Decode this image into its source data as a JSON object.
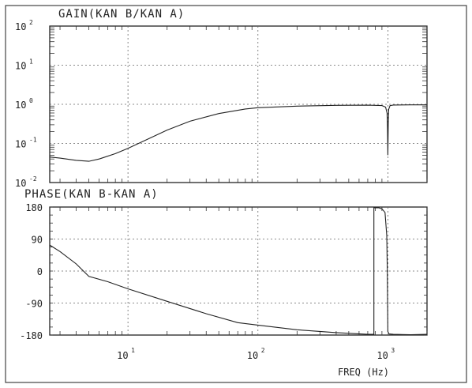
{
  "chart_data": [
    {
      "type": "line",
      "title": "GAIN(KAN B/KAN A)",
      "xscale": "log",
      "yscale": "log",
      "xlim": [
        2.5,
        2000
      ],
      "ylim": [
        0.01,
        100
      ],
      "grid": true,
      "y_ticks": [
        {
          "base": "10",
          "exp": "2"
        },
        {
          "base": "10",
          "exp": "1"
        },
        {
          "base": "10",
          "exp": "0"
        },
        {
          "base": "10",
          "exp": "-1"
        },
        {
          "base": "10",
          "exp": "-2"
        }
      ],
      "series": [
        {
          "x": [
            2.5,
            3,
            4,
            5,
            6,
            8,
            10,
            15,
            20,
            30,
            50,
            80,
            100,
            200,
            400,
            700,
            900,
            960,
            985,
            993,
            1000,
            1007,
            1015,
            1040,
            1100,
            1500,
            2000
          ],
          "y": [
            0.045,
            0.042,
            0.037,
            0.035,
            0.04,
            0.055,
            0.075,
            0.14,
            0.22,
            0.37,
            0.58,
            0.76,
            0.82,
            0.9,
            0.94,
            0.95,
            0.93,
            0.85,
            0.6,
            0.25,
            0.05,
            0.3,
            0.75,
            0.93,
            0.96,
            0.97,
            0.97
          ]
        }
      ]
    },
    {
      "type": "line",
      "title": "PHASE(KAN B-KAN A)",
      "xscale": "log",
      "xlim": [
        2.5,
        2000
      ],
      "ylim": [
        -180,
        180
      ],
      "grid": true,
      "xlabel": "FREQ (Hz)",
      "y_ticks": [
        "180",
        "90",
        "0",
        "-90",
        "-180"
      ],
      "x_ticks": [
        {
          "base": "10",
          "exp": "1"
        },
        {
          "base": "10",
          "exp": "2"
        },
        {
          "base": "10",
          "exp": "3"
        }
      ],
      "series": [
        {
          "x": [
            2.5,
            3,
            4,
            5,
            7,
            10,
            20,
            40,
            70,
            100,
            200,
            400,
            700,
            750,
            770,
            780,
            780.5,
            790,
            850,
            900,
            950,
            980,
            990,
            1000,
            1020,
            1100,
            1500,
            2000
          ],
          "y": [
            73,
            55,
            20,
            -15,
            -30,
            -50,
            -85,
            -120,
            -145,
            -152,
            -165,
            -173,
            -178,
            -178,
            -178,
            -178,
            178,
            178,
            178,
            175,
            165,
            100,
            0,
            -170,
            -177,
            -178,
            -179,
            -178
          ]
        }
      ]
    }
  ]
}
